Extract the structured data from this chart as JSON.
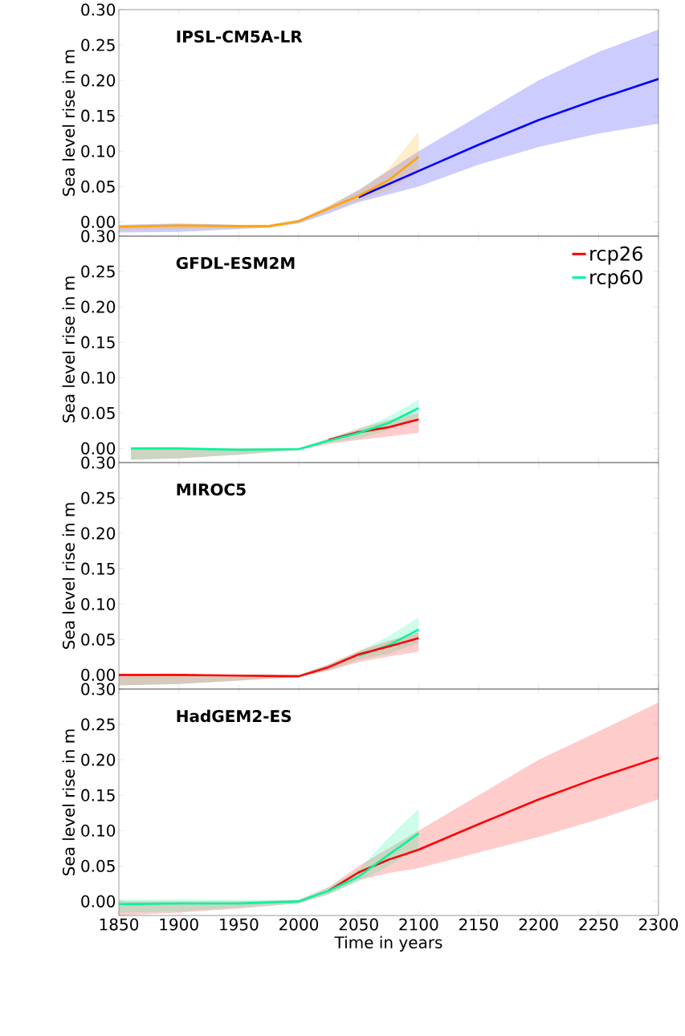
{
  "chart_data": [
    {
      "type": "line",
      "title": "IPSL-CM5A-LR",
      "ylabel": "Sea level rise in m",
      "xlim": [
        1850,
        2300
      ],
      "ylim": [
        -0.02,
        0.3
      ],
      "xticks": [
        1850,
        1900,
        1950,
        2000,
        2050,
        2100,
        2150,
        2200,
        2250,
        2300
      ],
      "yticks": [
        {
          "value": 0,
          "label": "0.00"
        },
        {
          "value": 0.05,
          "label": "0.05"
        },
        {
          "value": 0.1,
          "label": "0.10"
        },
        {
          "value": 0.15,
          "label": "0.15"
        },
        {
          "value": 0.2,
          "label": "0.20"
        },
        {
          "value": 0.25,
          "label": "0.25"
        },
        {
          "value": 0.3,
          "label": "0.30"
        }
      ],
      "tick_labels": "y",
      "grid": false,
      "marker": "none",
      "line_style": "solid",
      "series": [
        {
          "color": "#0000ff",
          "x": [
            1850,
            1900,
            1950,
            1975,
            2000,
            2025,
            2050,
            2100,
            2150,
            2200,
            2250,
            2300
          ],
          "values": [
            null,
            null,
            null,
            null,
            null,
            null,
            0.035,
            0.072,
            0.109,
            0.144,
            0.174,
            0.202
          ],
          "lower": [
            -0.015,
            -0.014,
            -0.01,
            -0.008,
            -0.002,
            0.012,
            0.028,
            0.05,
            0.081,
            0.106,
            0.125,
            0.139
          ],
          "upper": [
            -0.004,
            -0.002,
            -0.004,
            -0.004,
            0.003,
            0.022,
            0.045,
            0.1,
            0.15,
            0.2,
            0.24,
            0.272
          ]
        },
        {
          "color": "#ffa500",
          "x": [
            1850,
            1900,
            1950,
            1975,
            2000,
            2025,
            2050,
            2075,
            2100
          ],
          "values": [
            -0.007,
            -0.005,
            -0.006,
            -0.006,
            0.001,
            0.019,
            0.037,
            0.059,
            0.092
          ],
          "lower": [
            -0.012,
            -0.01,
            -0.009,
            -0.008,
            -0.001,
            0.015,
            0.03,
            0.045,
            0.07
          ],
          "upper": [
            -0.004,
            -0.003,
            -0.004,
            -0.004,
            0.003,
            0.023,
            0.045,
            0.075,
            0.128
          ]
        }
      ]
    },
    {
      "type": "line",
      "title": "GFDL-ESM2M",
      "ylabel": "Sea level rise in m",
      "xlim": [
        1850,
        2300
      ],
      "ylim": [
        -0.02,
        0.3
      ],
      "xticks": [
        1850,
        1900,
        1950,
        2000,
        2050,
        2100,
        2150,
        2200,
        2250,
        2300
      ],
      "yticks": [
        {
          "value": 0,
          "label": "0.00"
        },
        {
          "value": 0.05,
          "label": "0.05"
        },
        {
          "value": 0.1,
          "label": "0.10"
        },
        {
          "value": 0.15,
          "label": "0.15"
        },
        {
          "value": 0.2,
          "label": "0.20"
        },
        {
          "value": 0.25,
          "label": "0.25"
        },
        {
          "value": 0.3,
          "label": "0.30"
        }
      ],
      "tick_labels": "y",
      "grid": false,
      "marker": "none",
      "line_style": "solid",
      "legend": "top right",
      "series": [
        {
          "name": "rcp26",
          "color": "#ff0000",
          "x": [
            1860,
            1900,
            1950,
            2000,
            2025,
            2050,
            2075,
            2100
          ],
          "values": [
            null,
            null,
            null,
            null,
            0.012,
            0.023,
            0.03,
            0.041
          ],
          "lower": [
            -0.016,
            -0.014,
            -0.009,
            -0.002,
            0.006,
            0.012,
            0.017,
            0.022
          ],
          "upper": [
            0.0,
            0.0,
            0.0,
            0.0,
            0.014,
            0.028,
            0.04,
            0.05
          ]
        },
        {
          "name": "rcp60",
          "color": "#00f59b",
          "x": [
            1860,
            1900,
            1950,
            2000,
            2025,
            2050,
            2075,
            2100
          ],
          "values": [
            0.0,
            0.0,
            -0.002,
            -0.001,
            0.011,
            0.022,
            0.036,
            0.057
          ],
          "lower": [
            -0.016,
            -0.014,
            -0.009,
            -0.002,
            0.008,
            0.014,
            0.026,
            0.045
          ],
          "upper": [
            0.0,
            0.0,
            0.0,
            0.0,
            0.014,
            0.028,
            0.045,
            0.069
          ]
        }
      ]
    },
    {
      "type": "line",
      "title": "MIROC5",
      "ylabel": "Sea level rise in m",
      "xlim": [
        1850,
        2300
      ],
      "ylim": [
        -0.02,
        0.3
      ],
      "xticks": [
        1850,
        1900,
        1950,
        2000,
        2050,
        2100,
        2150,
        2200,
        2250,
        2300
      ],
      "yticks": [
        {
          "value": 0,
          "label": "0.00"
        },
        {
          "value": 0.05,
          "label": "0.05"
        },
        {
          "value": 0.1,
          "label": "0.10"
        },
        {
          "value": 0.15,
          "label": "0.15"
        },
        {
          "value": 0.2,
          "label": "0.20"
        },
        {
          "value": 0.25,
          "label": "0.25"
        },
        {
          "value": 0.3,
          "label": "0.30"
        }
      ],
      "tick_labels": "y",
      "grid": false,
      "marker": "none",
      "line_style": "solid",
      "series": [
        {
          "color": "#00f59b",
          "x": [
            1850,
            1900,
            1950,
            2000,
            2025,
            2050,
            2075,
            2100
          ],
          "values": [
            null,
            null,
            null,
            null,
            null,
            0.027,
            0.042,
            0.064
          ],
          "lower": [
            -0.015,
            -0.013,
            -0.008,
            -0.003,
            0.006,
            0.021,
            0.03,
            0.045
          ],
          "upper": [
            0.001,
            0.001,
            0.0,
            0.0,
            0.015,
            0.033,
            0.055,
            0.081
          ]
        },
        {
          "color": "#ff0000",
          "x": [
            1850,
            1900,
            1950,
            2000,
            2025,
            2050,
            2075,
            2100
          ],
          "values": [
            0.0,
            0.0,
            -0.001,
            -0.002,
            0.011,
            0.029,
            0.04,
            0.052
          ],
          "lower": [
            -0.015,
            -0.013,
            -0.008,
            -0.003,
            0.006,
            0.018,
            0.026,
            0.033
          ],
          "upper": [
            0.001,
            0.001,
            0.0,
            0.0,
            0.015,
            0.034,
            0.048,
            0.06
          ]
        }
      ]
    },
    {
      "type": "line",
      "title": "HadGEM2-ES",
      "ylabel": "Sea level rise in m",
      "xlabel": "Time in years",
      "xlim": [
        1850,
        2300
      ],
      "ylim": [
        -0.02,
        0.3
      ],
      "xticks": [
        1850,
        1900,
        1950,
        2000,
        2050,
        2100,
        2150,
        2200,
        2250,
        2300
      ],
      "yticks": [
        {
          "value": 0,
          "label": "0.00"
        },
        {
          "value": 0.05,
          "label": "0.05"
        },
        {
          "value": 0.1,
          "label": "0.10"
        },
        {
          "value": 0.15,
          "label": "0.15"
        },
        {
          "value": 0.2,
          "label": "0.20"
        },
        {
          "value": 0.25,
          "label": "0.25"
        },
        {
          "value": 0.3,
          "label": "0.30"
        }
      ],
      "grid": false,
      "marker": "none",
      "line_style": "solid",
      "series": [
        {
          "color": "#ff0000",
          "x": [
            1850,
            1900,
            1950,
            2000,
            2025,
            2050,
            2075,
            2100,
            2150,
            2200,
            2250,
            2300
          ],
          "values": [
            null,
            null,
            null,
            null,
            0.015,
            0.041,
            0.059,
            0.073,
            0.109,
            0.144,
            0.175,
            0.203
          ],
          "lower": [
            -0.02,
            -0.016,
            -0.01,
            -0.003,
            0.01,
            0.03,
            0.04,
            0.047,
            0.069,
            0.091,
            0.116,
            0.144
          ],
          "upper": [
            0.0,
            0.0,
            0.0,
            0.002,
            0.02,
            0.05,
            0.075,
            0.1,
            0.15,
            0.2,
            0.24,
            0.281
          ]
        },
        {
          "color": "#00f59b",
          "x": [
            1850,
            1900,
            1950,
            2000,
            2025,
            2050,
            2075,
            2100
          ],
          "values": [
            -0.004,
            -0.003,
            -0.003,
            0.0,
            0.015,
            0.035,
            0.066,
            0.096
          ],
          "lower": [
            -0.016,
            -0.014,
            -0.009,
            -0.003,
            0.01,
            0.028,
            0.05,
            0.075
          ],
          "upper": [
            0.003,
            0.003,
            0.002,
            0.002,
            0.02,
            0.045,
            0.09,
            0.131
          ]
        }
      ]
    }
  ]
}
